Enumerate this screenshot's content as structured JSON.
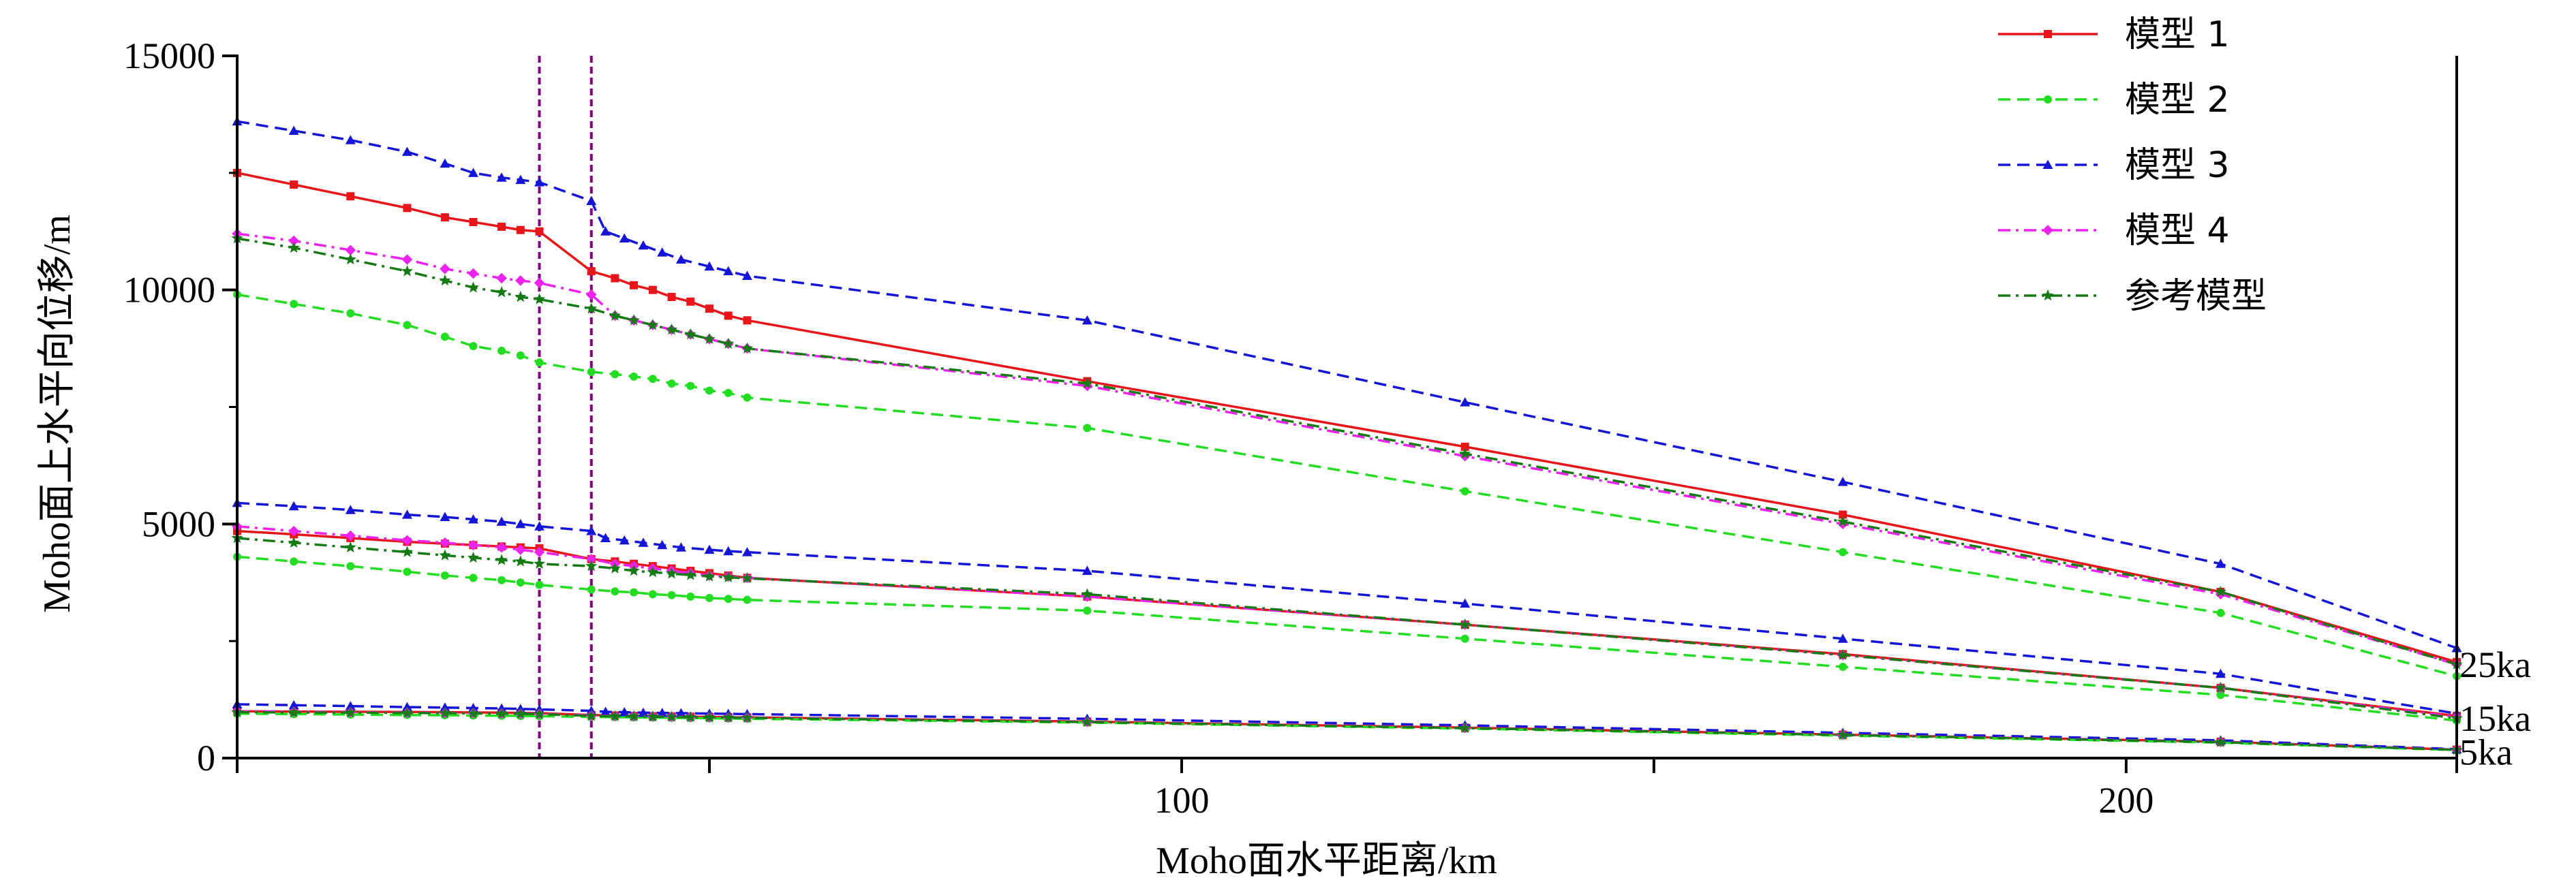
{
  "chart_data": {
    "type": "line",
    "xlabel": "Moho面水平距离/km",
    "ylabel": "Moho面上水平向位移/m",
    "xlim": [
      0,
      235
    ],
    "ylim": [
      0,
      15000
    ],
    "x_ticks": [
      {
        "value": 0,
        "label": ""
      },
      {
        "value": 50,
        "label": ""
      },
      {
        "value": 100,
        "label": "100"
      },
      {
        "value": 150,
        "label": ""
      },
      {
        "value": 200,
        "label": ""
      },
      {
        "value": 235,
        "label": ""
      }
    ],
    "x_tick_labels": [
      {
        "value": 100,
        "label": "100"
      },
      {
        "value": 200,
        "label": "200"
      }
    ],
    "y_ticks": [
      {
        "value": 0,
        "label": "0"
      },
      {
        "value": 5000,
        "label": "5000"
      },
      {
        "value": 10000,
        "label": "10000"
      },
      {
        "value": 15000,
        "label": "15000"
      }
    ],
    "vertical_lines": [
      32,
      37.5
    ],
    "time_labels": [
      {
        "label": "25ka",
        "y": 2050
      },
      {
        "label": "15ka",
        "y": 900
      },
      {
        "label": "5ka",
        "y": 180
      }
    ],
    "legend_position": "top-right",
    "series": [
      {
        "name": "模型 1",
        "color": "#e8151b",
        "dash": "solid",
        "marker": "square",
        "groups": [
          {
            "time": "25ka",
            "x": [
              0,
              6,
              12,
              18,
              22,
              25,
              28,
              30,
              32,
              37.5,
              40,
              42,
              44,
              46,
              48,
              50,
              52,
              54,
              90,
              130,
              170,
              210,
              235
            ],
            "y": [
              12500,
              12250,
              12000,
              11750,
              11550,
              11450,
              11350,
              11280,
              11250,
              10400,
              10250,
              10100,
              10000,
              9850,
              9750,
              9600,
              9450,
              9350,
              8050,
              6650,
              5200,
              3550,
              2050
            ]
          },
          {
            "time": "15ka",
            "x": [
              0,
              6,
              12,
              18,
              22,
              25,
              28,
              30,
              32,
              37.5,
              40,
              42,
              44,
              46,
              48,
              50,
              52,
              54,
              90,
              130,
              170,
              210,
              235
            ],
            "y": [
              4850,
              4780,
              4700,
              4620,
              4580,
              4550,
              4520,
              4500,
              4480,
              4250,
              4200,
              4150,
              4100,
              4050,
              4000,
              3950,
              3900,
              3850,
              3450,
              2850,
              2220,
              1500,
              900
            ]
          },
          {
            "time": "5ka",
            "x": [
              0,
              6,
              12,
              18,
              22,
              25,
              28,
              30,
              32,
              37.5,
              40,
              42,
              44,
              46,
              48,
              50,
              52,
              54,
              90,
              130,
              170,
              210,
              235
            ],
            "y": [
              1000,
              995,
              990,
              985,
              980,
              975,
              970,
              965,
              960,
              920,
              910,
              900,
              895,
              890,
              885,
              880,
              875,
              870,
              780,
              650,
              500,
              350,
              180
            ]
          }
        ]
      },
      {
        "name": "模型 2",
        "color": "#22dd22",
        "dash": "dashed",
        "marker": "circle",
        "groups": [
          {
            "time": "25ka",
            "x": [
              0,
              6,
              12,
              18,
              22,
              25,
              28,
              30,
              32,
              37.5,
              40,
              42,
              44,
              46,
              48,
              50,
              52,
              54,
              90,
              130,
              170,
              210,
              235
            ],
            "y": [
              9900,
              9700,
              9500,
              9250,
              9000,
              8800,
              8700,
              8600,
              8450,
              8250,
              8200,
              8150,
              8100,
              8000,
              7950,
              7850,
              7800,
              7700,
              7050,
              5700,
              4400,
              3100,
              1750
            ]
          },
          {
            "time": "15ka",
            "x": [
              0,
              6,
              12,
              18,
              22,
              25,
              28,
              30,
              32,
              37.5,
              40,
              42,
              44,
              46,
              48,
              50,
              52,
              54,
              90,
              130,
              170,
              210,
              235
            ],
            "y": [
              4300,
              4200,
              4100,
              3980,
              3900,
              3850,
              3800,
              3750,
              3700,
              3600,
              3560,
              3540,
              3500,
              3480,
              3450,
              3420,
              3400,
              3380,
              3150,
              2550,
              1950,
              1350,
              800
            ]
          },
          {
            "time": "5ka",
            "x": [
              0,
              6,
              12,
              18,
              22,
              25,
              28,
              30,
              32,
              37.5,
              40,
              42,
              44,
              46,
              48,
              50,
              52,
              54,
              90,
              130,
              170,
              210,
              235
            ],
            "y": [
              950,
              940,
              930,
              920,
              915,
              910,
              905,
              900,
              895,
              880,
              875,
              870,
              865,
              860,
              855,
              850,
              845,
              840,
              760,
              630,
              480,
              330,
              170
            ]
          }
        ]
      },
      {
        "name": "模型 3",
        "color": "#1515d8",
        "dash": "dashed",
        "marker": "triangle",
        "groups": [
          {
            "time": "25ka",
            "x": [
              0,
              6,
              12,
              18,
              22,
              25,
              28,
              30,
              32,
              37.5,
              39,
              41,
              43,
              45,
              47,
              50,
              52,
              54,
              90,
              130,
              170,
              210,
              235
            ],
            "y": [
              13600,
              13400,
              13200,
              12950,
              12700,
              12500,
              12400,
              12350,
              12300,
              11900,
              11250,
              11100,
              10950,
              10800,
              10650,
              10500,
              10400,
              10300,
              9350,
              7600,
              5900,
              4150,
              2350
            ]
          },
          {
            "time": "15ka",
            "x": [
              0,
              6,
              12,
              18,
              22,
              25,
              28,
              30,
              32,
              37.5,
              39,
              41,
              43,
              45,
              47,
              50,
              52,
              54,
              90,
              130,
              170,
              210,
              235
            ],
            "y": [
              5450,
              5380,
              5300,
              5200,
              5150,
              5100,
              5050,
              5000,
              4950,
              4850,
              4700,
              4650,
              4600,
              4550,
              4500,
              4450,
              4420,
              4400,
              4000,
              3300,
              2550,
              1800,
              950
            ]
          },
          {
            "time": "5ka",
            "x": [
              0,
              6,
              12,
              18,
              22,
              25,
              28,
              30,
              32,
              37.5,
              39,
              41,
              43,
              45,
              47,
              50,
              52,
              54,
              90,
              130,
              170,
              210,
              235
            ],
            "y": [
              1150,
              1130,
              1110,
              1090,
              1080,
              1070,
              1060,
              1050,
              1040,
              1010,
              990,
              980,
              970,
              965,
              960,
              950,
              945,
              940,
              840,
              700,
              540,
              380,
              190
            ]
          }
        ]
      },
      {
        "name": "模型 4",
        "color": "#ee22ee",
        "dash": "dashdot",
        "marker": "diamond",
        "groups": [
          {
            "time": "25ka",
            "x": [
              0,
              6,
              12,
              18,
              22,
              25,
              28,
              30,
              32,
              37.5,
              40,
              42,
              44,
              46,
              48,
              50,
              52,
              54,
              90,
              130,
              170,
              210,
              235
            ],
            "y": [
              11200,
              11050,
              10850,
              10650,
              10450,
              10350,
              10250,
              10200,
              10150,
              9900,
              9450,
              9350,
              9250,
              9150,
              9050,
              8950,
              8850,
              8750,
              7950,
              6450,
              5000,
              3500,
              2000
            ]
          },
          {
            "time": "15ka",
            "x": [
              0,
              6,
              12,
              18,
              22,
              25,
              28,
              30,
              32,
              37.5,
              40,
              42,
              44,
              46,
              48,
              50,
              52,
              54,
              90,
              130,
              170,
              210,
              235
            ],
            "y": [
              4950,
              4850,
              4750,
              4650,
              4600,
              4550,
              4500,
              4450,
              4400,
              4250,
              4150,
              4100,
              4050,
              4000,
              3950,
              3900,
              3880,
              3850,
              3450,
              2850,
              2200,
              1500,
              880
            ]
          },
          {
            "time": "5ka",
            "x": [
              0,
              6,
              12,
              18,
              22,
              25,
              28,
              30,
              32,
              37.5,
              40,
              42,
              44,
              46,
              48,
              50,
              52,
              54,
              90,
              130,
              170,
              210,
              235
            ],
            "y": [
              1000,
              990,
              980,
              970,
              965,
              960,
              955,
              950,
              945,
              910,
              900,
              895,
              890,
              885,
              880,
              875,
              870,
              865,
              775,
              645,
              500,
              345,
              180
            ]
          }
        ]
      },
      {
        "name": "参考模型",
        "color": "#147a14",
        "dash": "dashdot",
        "marker": "star",
        "groups": [
          {
            "time": "25ka",
            "x": [
              0,
              6,
              12,
              18,
              22,
              25,
              28,
              30,
              32,
              37.5,
              40,
              42,
              44,
              46,
              48,
              50,
              52,
              54,
              90,
              130,
              170,
              210,
              235
            ],
            "y": [
              11100,
              10900,
              10650,
              10400,
              10200,
              10050,
              9950,
              9850,
              9800,
              9600,
              9450,
              9350,
              9250,
              9150,
              9050,
              8950,
              8850,
              8750,
              8000,
              6500,
              5050,
              3550,
              2000
            ]
          },
          {
            "time": "15ka",
            "x": [
              0,
              6,
              12,
              18,
              22,
              25,
              28,
              30,
              32,
              37.5,
              40,
              42,
              44,
              46,
              48,
              50,
              52,
              54,
              90,
              130,
              170,
              210,
              235
            ],
            "y": [
              4700,
              4600,
              4500,
              4400,
              4330,
              4280,
              4230,
              4200,
              4150,
              4100,
              4050,
              4000,
              3970,
              3940,
              3910,
              3880,
              3860,
              3840,
              3500,
              2850,
              2200,
              1500,
              850
            ]
          },
          {
            "time": "5ka",
            "x": [
              0,
              6,
              12,
              18,
              22,
              25,
              28,
              30,
              32,
              37.5,
              40,
              42,
              44,
              46,
              48,
              50,
              52,
              54,
              90,
              130,
              170,
              210,
              235
            ],
            "y": [
              980,
              975,
              970,
              965,
              960,
              955,
              950,
              945,
              940,
              900,
              895,
              890,
              885,
              880,
              875,
              870,
              865,
              860,
              770,
              640,
              495,
              340,
              175
            ]
          }
        ]
      }
    ]
  }
}
